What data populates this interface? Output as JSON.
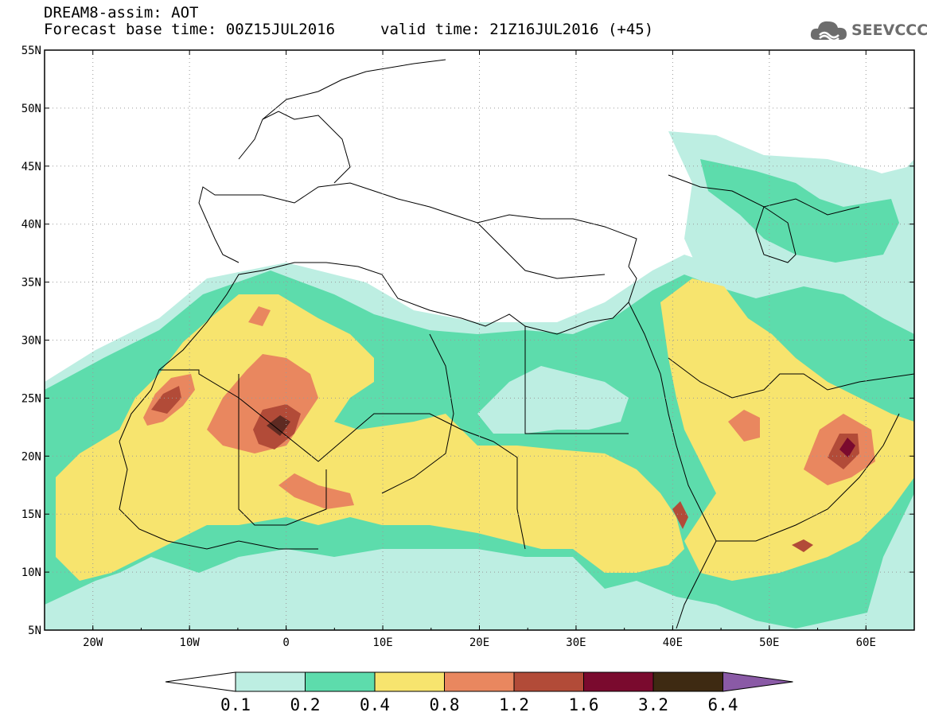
{
  "header": {
    "line1": "DREAM8-assim: AOT",
    "line2": "Forecast base time: 00Z15JUL2016",
    "line3": "valid time: 21Z16JUL2016 (+45)"
  },
  "logo": {
    "text": "SEEVCCC",
    "icon": "cloud-icon"
  },
  "map": {
    "lat_labels": [
      "55N",
      "50N",
      "45N",
      "40N",
      "35N",
      "30N",
      "25N",
      "20N",
      "15N",
      "10N",
      "5N"
    ],
    "lon_labels": [
      "20W",
      "10W",
      "0",
      "10E",
      "20E",
      "30E",
      "40E",
      "50E",
      "60E"
    ],
    "lon_range": [
      -25,
      65
    ],
    "lat_range": [
      5,
      55
    ],
    "grid": "dotted"
  },
  "colorbar": {
    "labels": [
      "0.1",
      "0.2",
      "0.4",
      "0.8",
      "1.2",
      "1.6",
      "3.2",
      "6.4"
    ],
    "colors": [
      "#ffffff",
      "#bdeee2",
      "#5ddcac",
      "#f7e46e",
      "#e9875f",
      "#b24b38",
      "#7a0a2e",
      "#3e2a12",
      "#8a5aa6"
    ]
  }
}
